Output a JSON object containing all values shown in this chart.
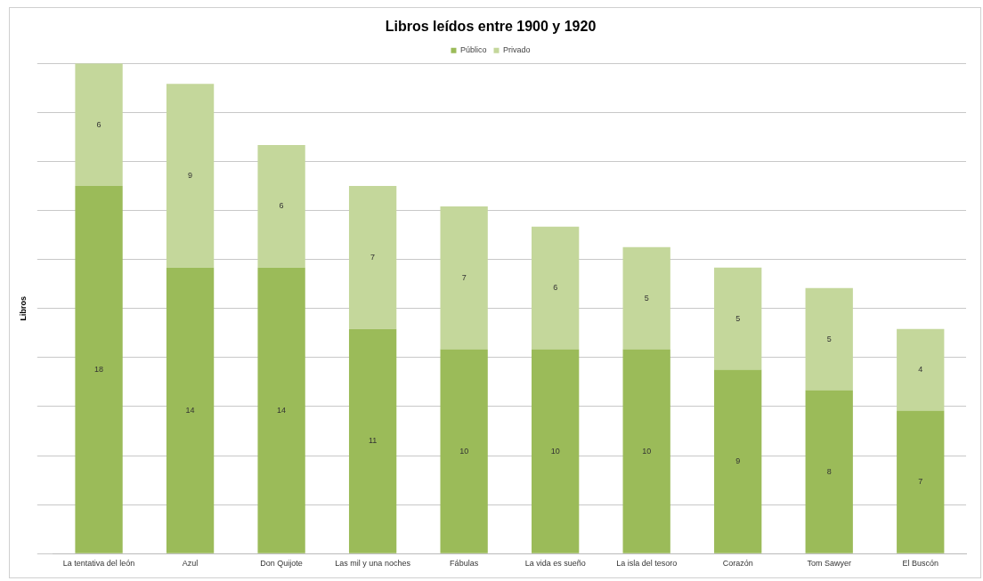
{
  "chart_data": {
    "type": "bar",
    "title": "Libros leídos entre 1900 y 1920",
    "ylabel": "Libros",
    "categories": [
      "La tentativa del león",
      "Azul",
      "Don Quijote",
      "Las mil y una noches",
      "Fábulas",
      "La vida es sueño",
      "La isla del tesoro",
      "Corazón",
      "Tom Sawyer",
      "El Buscón"
    ],
    "series": [
      {
        "name": "Público",
        "color": "#9bbb59",
        "values": [
          18,
          14,
          14,
          11,
          10,
          10,
          10,
          9,
          8,
          7
        ]
      },
      {
        "name": "Privado",
        "color": "#c4d79b",
        "values": [
          6,
          9,
          6,
          7,
          7,
          6,
          5,
          5,
          5,
          4
        ]
      }
    ],
    "stacked": true,
    "data_labels": true,
    "tick_labels": "x",
    "grid": "y",
    "legend": "top"
  }
}
